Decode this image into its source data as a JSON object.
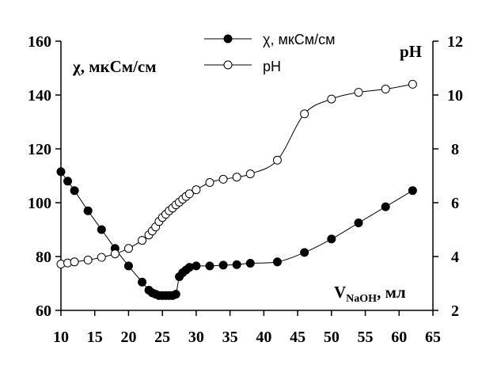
{
  "chart_data": {
    "type": "line",
    "y_left": {
      "label": "χ, мкСм/см",
      "range": [
        60,
        160
      ],
      "ticks": [
        "60",
        "80",
        "100",
        "120",
        "140",
        "160"
      ]
    },
    "y_right": {
      "label": "pH",
      "range": [
        2,
        12
      ],
      "ticks": [
        "2",
        "4",
        "6",
        "8",
        "10",
        "12"
      ]
    },
    "x_axis": {
      "label_main": "V",
      "label_sub": "NaOH",
      "label_unit": ", мл",
      "range": [
        10,
        65
      ],
      "ticks": [
        "10",
        "15",
        "20",
        "25",
        "30",
        "35",
        "40",
        "45",
        "50",
        "55",
        "60",
        "65"
      ]
    },
    "legend_position": "top-center",
    "grid": false,
    "series": [
      {
        "name": "χ, мкСм/см",
        "axis": "left",
        "marker": "filled-circle",
        "points": [
          [
            10,
            111.5
          ],
          [
            11,
            108
          ],
          [
            12,
            104.5
          ],
          [
            14,
            97
          ],
          [
            16,
            90
          ],
          [
            18,
            83
          ],
          [
            20,
            76.5
          ],
          [
            22,
            70.5
          ],
          [
            23,
            67.5
          ],
          [
            23.5,
            66.5
          ],
          [
            24,
            66
          ],
          [
            24.5,
            65.5
          ],
          [
            25,
            65.5
          ],
          [
            25.5,
            65.5
          ],
          [
            26,
            65.5
          ],
          [
            26.5,
            65.5
          ],
          [
            27,
            66
          ],
          [
            27.5,
            72.5
          ],
          [
            28,
            74
          ],
          [
            28.5,
            75
          ],
          [
            29,
            76
          ],
          [
            30,
            76.5
          ],
          [
            32,
            76.5
          ],
          [
            34,
            76.8
          ],
          [
            36,
            77
          ],
          [
            38,
            77.5
          ],
          [
            42,
            78
          ],
          [
            46,
            81.5
          ],
          [
            50,
            86.5
          ],
          [
            54,
            92.5
          ],
          [
            58,
            98.5
          ],
          [
            62,
            104.5
          ]
        ]
      },
      {
        "name": "pH",
        "axis": "right",
        "marker": "open-circle",
        "points": [
          [
            10,
            3.72
          ],
          [
            11,
            3.76
          ],
          [
            12,
            3.8
          ],
          [
            14,
            3.87
          ],
          [
            16,
            3.97
          ],
          [
            18,
            4.1
          ],
          [
            20,
            4.3
          ],
          [
            22,
            4.6
          ],
          [
            23,
            4.8
          ],
          [
            23.5,
            4.95
          ],
          [
            24,
            5.1
          ],
          [
            24.5,
            5.3
          ],
          [
            25,
            5.45
          ],
          [
            25.5,
            5.57
          ],
          [
            26,
            5.7
          ],
          [
            26.5,
            5.8
          ],
          [
            27,
            5.92
          ],
          [
            27.5,
            6.02
          ],
          [
            28,
            6.13
          ],
          [
            28.5,
            6.23
          ],
          [
            29,
            6.33
          ],
          [
            30,
            6.48
          ],
          [
            32,
            6.75
          ],
          [
            34,
            6.87
          ],
          [
            36,
            6.95
          ],
          [
            38,
            7.07
          ],
          [
            42,
            7.58
          ],
          [
            46,
            9.3
          ],
          [
            50,
            9.85
          ],
          [
            54,
            10.1
          ],
          [
            58,
            10.22
          ],
          [
            62,
            10.4
          ]
        ]
      }
    ]
  }
}
